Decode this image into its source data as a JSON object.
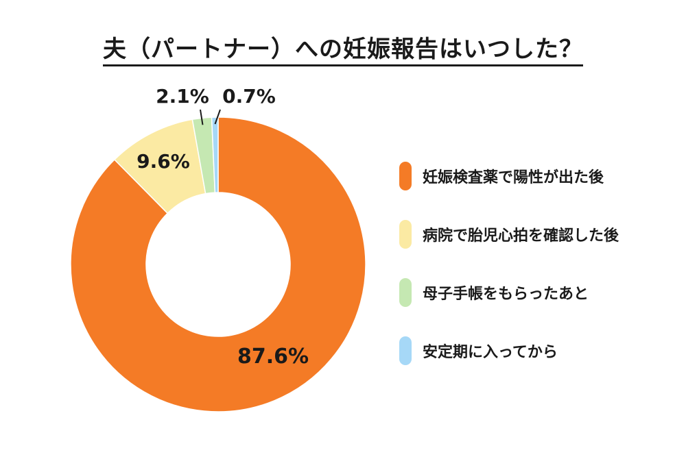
{
  "title": "夫（パートナー）への妊娠報告はいつした？",
  "chart_data": {
    "type": "pie",
    "title": "夫（パートナー）への妊娠報告はいつした？",
    "series": [
      {
        "name": "妊娠検査薬で陽性が出た後",
        "value": 87.6,
        "label": "87.6%",
        "color": "#f47b26"
      },
      {
        "name": "病院で胎児心拍を確認した後",
        "value": 9.6,
        "label": "9.6%",
        "color": "#fbeaa3"
      },
      {
        "name": "母子手帳をもらったあと",
        "value": 2.1,
        "label": "2.1%",
        "color": "#c5e8b2"
      },
      {
        "name": "安定期に入ってから",
        "value": 0.7,
        "label": "0.7%",
        "color": "#a6d8f7"
      }
    ],
    "legend_position": "right",
    "donut": true
  }
}
